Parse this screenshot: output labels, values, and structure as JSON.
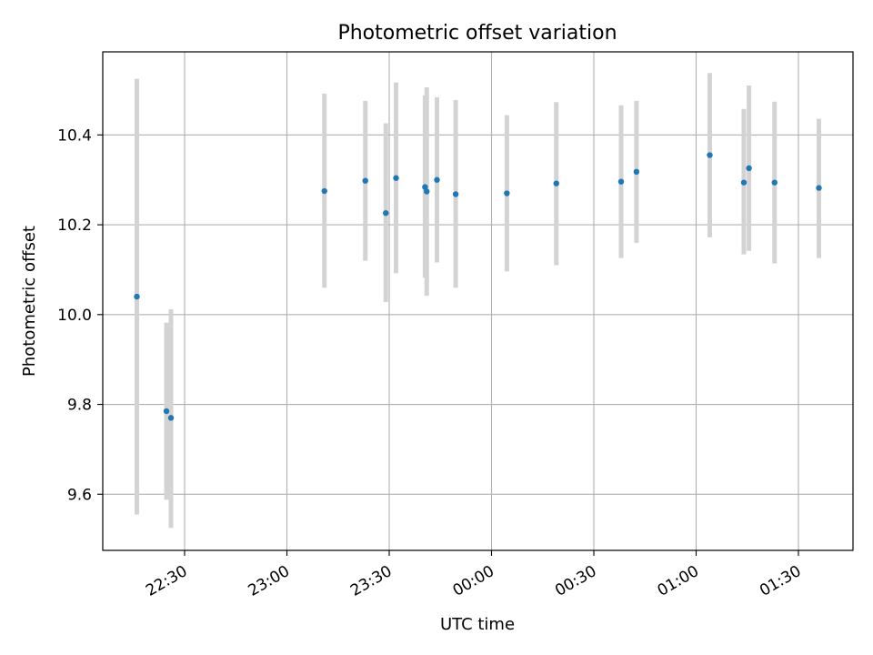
{
  "chart_data": {
    "type": "scatter",
    "title": "Photometric offset variation",
    "xlabel": "UTC time",
    "ylabel": "Photometric offset",
    "x_is_time": true,
    "xlim": [
      "22:06",
      "01:46"
    ],
    "ylim": [
      9.475,
      10.585
    ],
    "xticks": [
      "22:30",
      "23:00",
      "23:30",
      "00:00",
      "00:30",
      "01:00",
      "01:30"
    ],
    "yticks": [
      "9.6",
      "9.8",
      "10.0",
      "10.2",
      "10.4"
    ],
    "grid": true,
    "colors": {
      "point": "#1f77b4",
      "errorbar": "#d3d3d3",
      "grid": "#b0b0b0",
      "axes": "#000000"
    },
    "points": [
      {
        "time": "22:16",
        "y": 10.04,
        "ylow": 9.555,
        "yhigh": 10.525
      },
      {
        "time": "22:24:40",
        "y": 9.785,
        "ylow": 9.588,
        "yhigh": 9.982
      },
      {
        "time": "22:26",
        "y": 9.77,
        "ylow": 9.525,
        "yhigh": 10.012
      },
      {
        "time": "23:11",
        "y": 10.275,
        "ylow": 10.06,
        "yhigh": 10.492
      },
      {
        "time": "23:23",
        "y": 10.298,
        "ylow": 10.12,
        "yhigh": 10.476
      },
      {
        "time": "23:29",
        "y": 10.226,
        "ylow": 10.028,
        "yhigh": 10.426
      },
      {
        "time": "23:32",
        "y": 10.304,
        "ylow": 10.092,
        "yhigh": 10.517
      },
      {
        "time": "23:40:30",
        "y": 10.284,
        "ylow": 10.082,
        "yhigh": 10.488
      },
      {
        "time": "23:41",
        "y": 10.274,
        "ylow": 10.042,
        "yhigh": 10.506
      },
      {
        "time": "23:44",
        "y": 10.3,
        "ylow": 10.116,
        "yhigh": 10.484
      },
      {
        "time": "23:49:30",
        "y": 10.268,
        "ylow": 10.06,
        "yhigh": 10.478
      },
      {
        "time": "00:04:30",
        "y": 10.27,
        "ylow": 10.096,
        "yhigh": 10.444
      },
      {
        "time": "00:19",
        "y": 10.292,
        "ylow": 10.11,
        "yhigh": 10.473
      },
      {
        "time": "00:38",
        "y": 10.296,
        "ylow": 10.126,
        "yhigh": 10.466
      },
      {
        "time": "00:42:30",
        "y": 10.318,
        "ylow": 10.16,
        "yhigh": 10.476
      },
      {
        "time": "01:04",
        "y": 10.355,
        "ylow": 10.172,
        "yhigh": 10.538
      },
      {
        "time": "01:14",
        "y": 10.294,
        "ylow": 10.134,
        "yhigh": 10.458
      },
      {
        "time": "01:15:30",
        "y": 10.326,
        "ylow": 10.142,
        "yhigh": 10.51
      },
      {
        "time": "01:23",
        "y": 10.294,
        "ylow": 10.114,
        "yhigh": 10.474
      },
      {
        "time": "01:36",
        "y": 10.282,
        "ylow": 10.126,
        "yhigh": 10.436
      }
    ]
  }
}
